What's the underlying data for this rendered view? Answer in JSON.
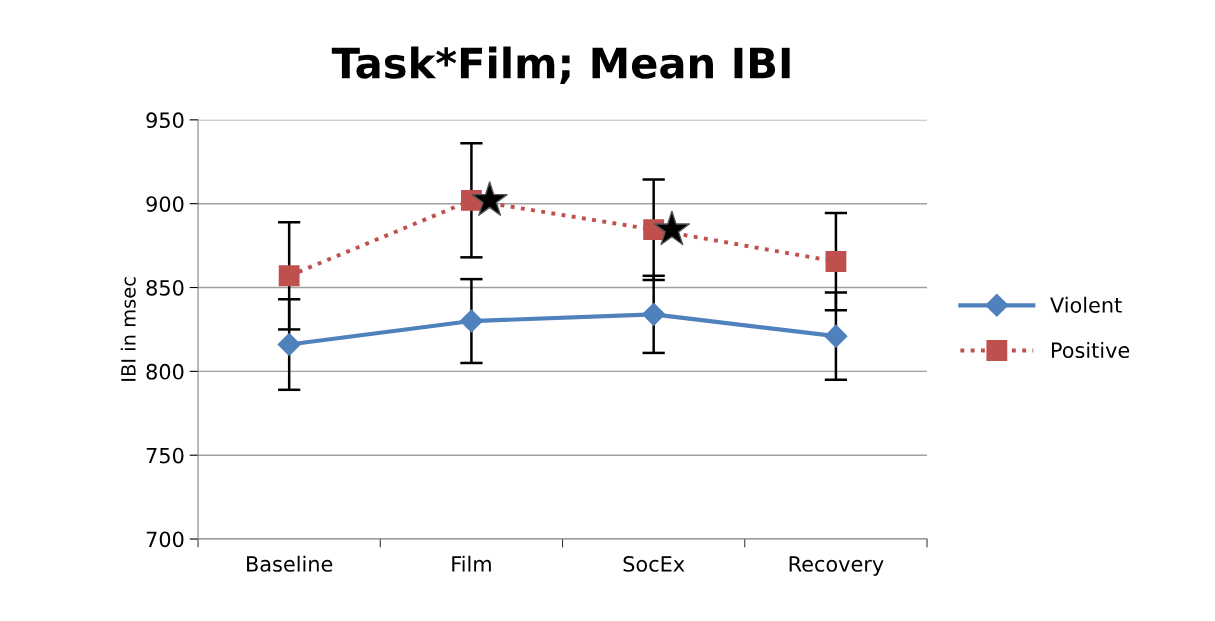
{
  "chart_data": {
    "type": "line",
    "title": "Task*Film; Mean IBI",
    "ylabel": "IBI in msec",
    "categories": [
      "Baseline",
      "Film",
      "SocEx",
      "Recovery"
    ],
    "series": [
      {
        "name": "Violent",
        "color": "#4f81bd",
        "values": [
          816,
          830,
          834,
          821
        ],
        "errors": [
          27,
          25,
          23,
          26
        ],
        "marker": "diamond",
        "line_style": "solid"
      },
      {
        "name": "Positive",
        "color": "#c0504d",
        "values": [
          857,
          902,
          884.5,
          865.5
        ],
        "errors": [
          32,
          34,
          30,
          29
        ],
        "marker": "square",
        "line_style": "dotted"
      }
    ],
    "ylim": [
      700,
      950
    ],
    "yticks": [
      700,
      750,
      800,
      850,
      900,
      950
    ],
    "grid": "y",
    "legend": "right"
  }
}
